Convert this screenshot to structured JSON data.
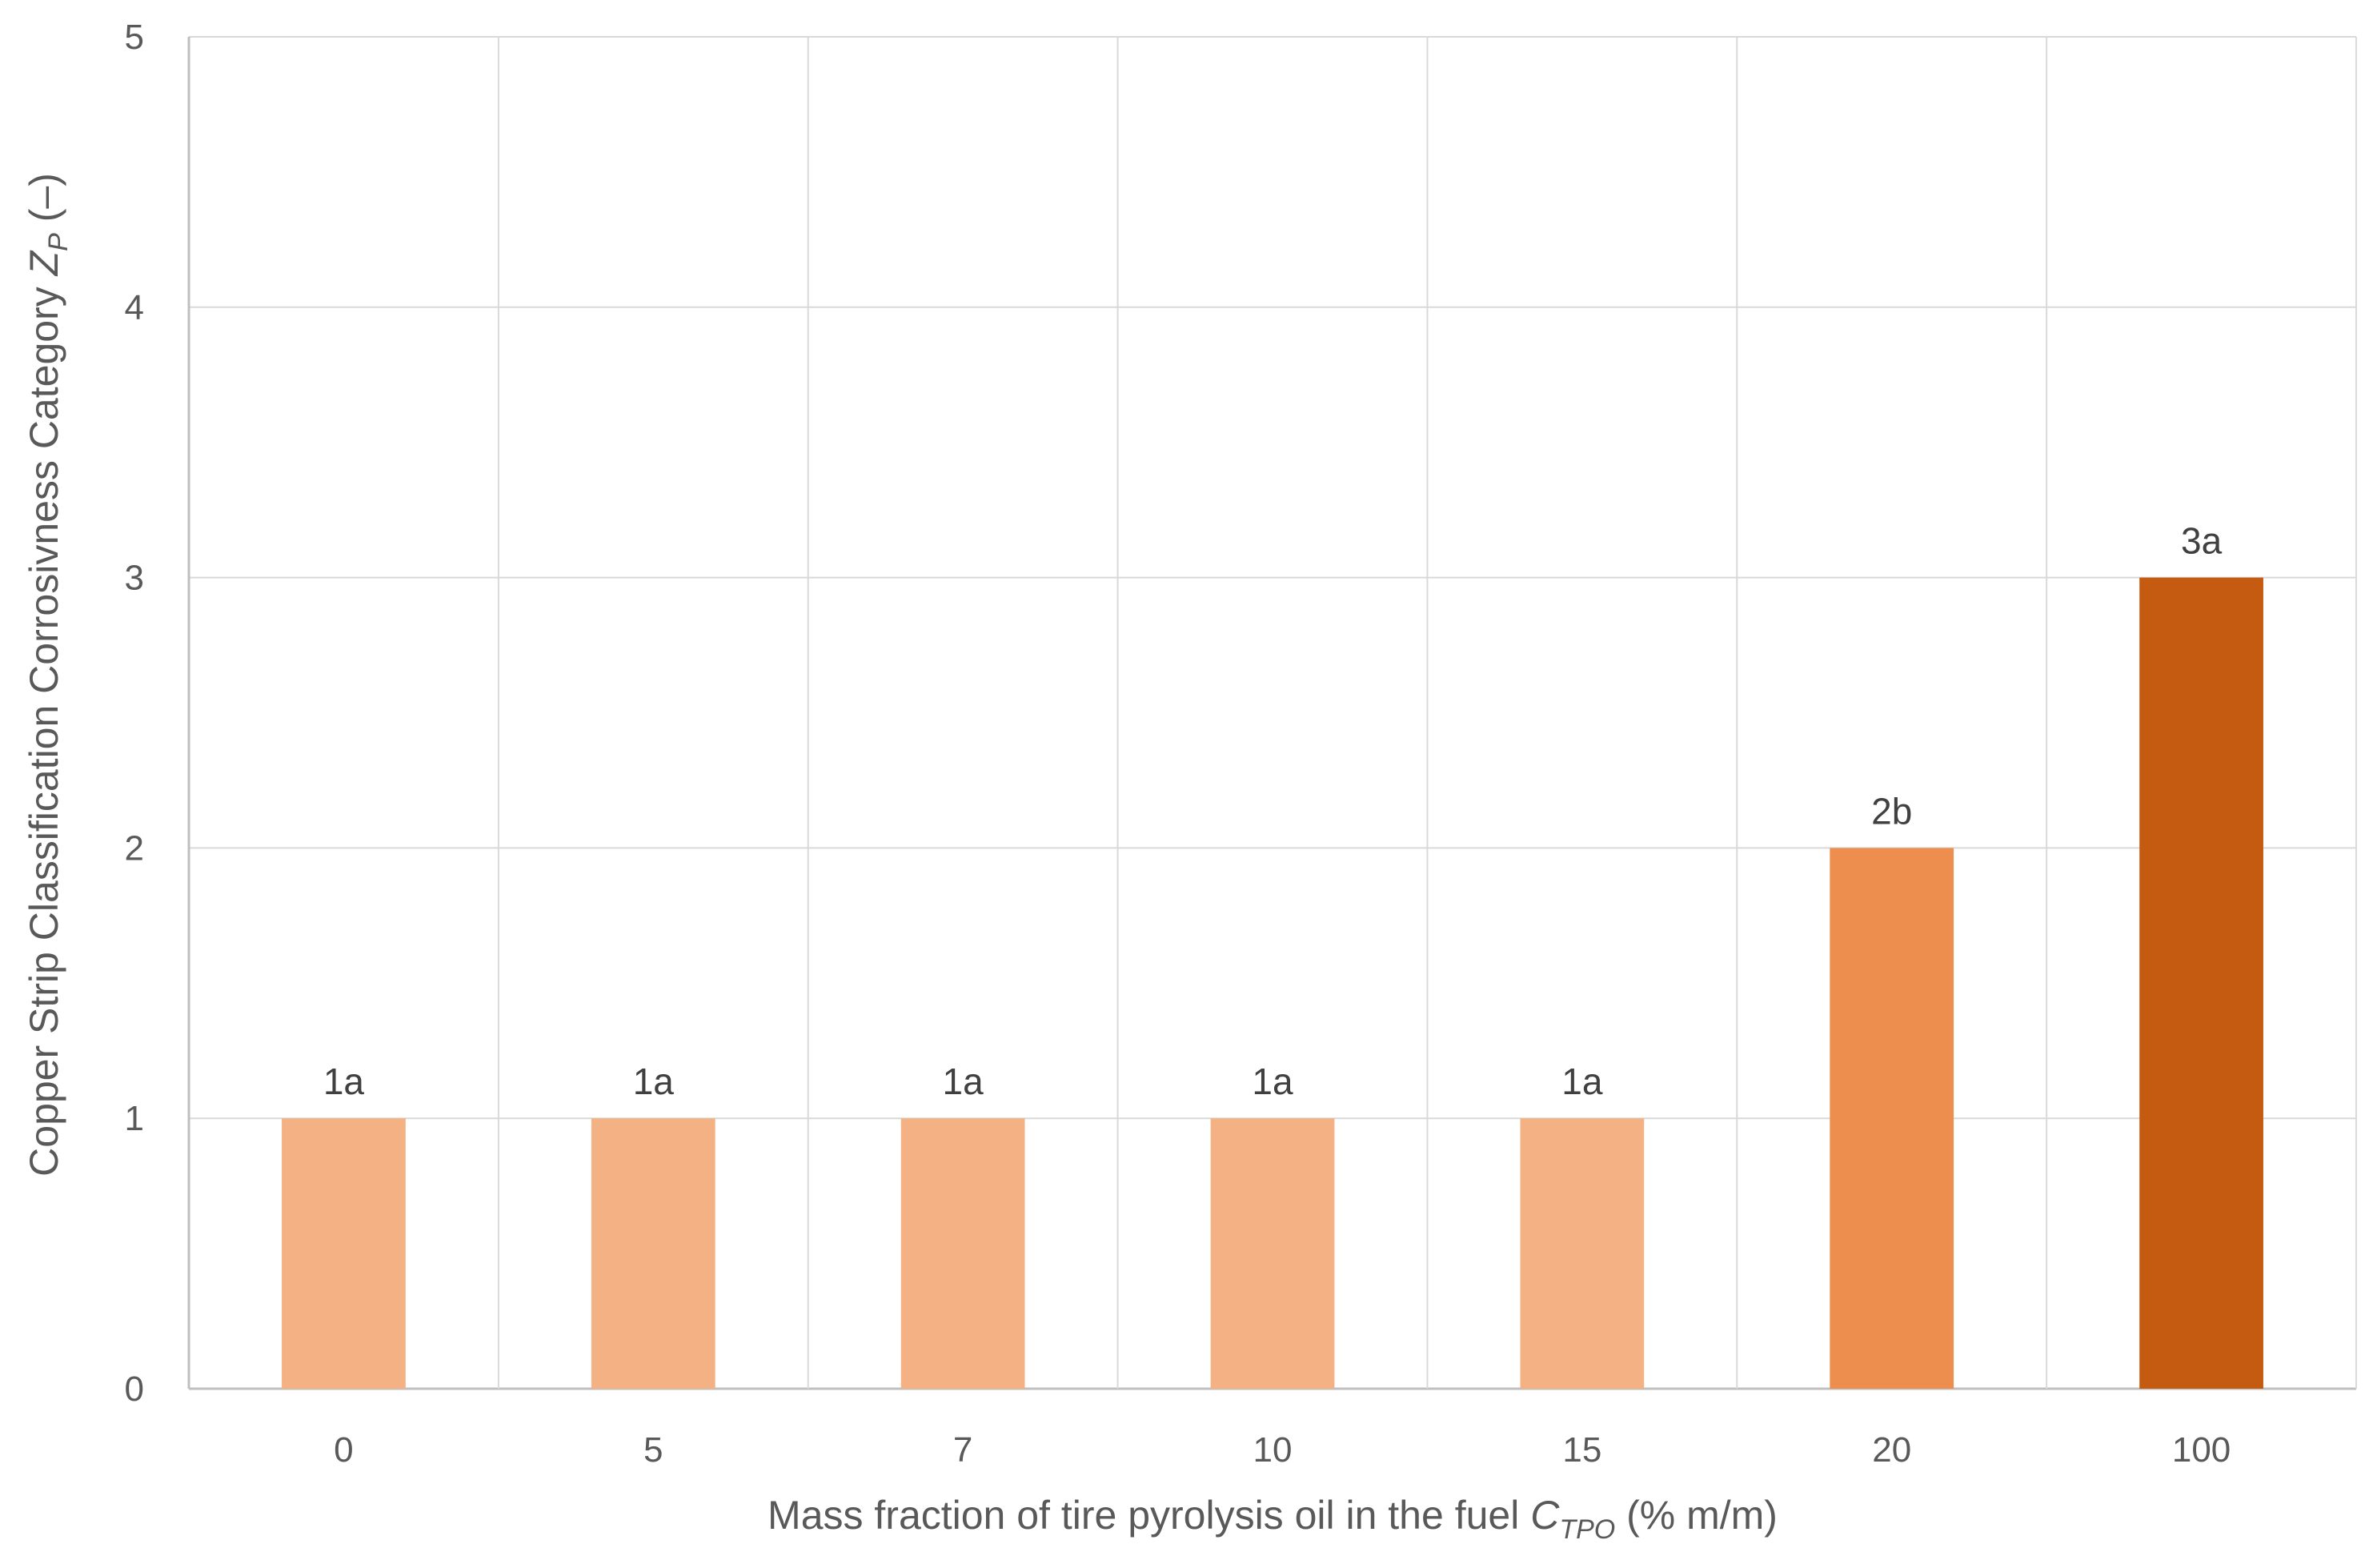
{
  "chart_data": {
    "type": "bar",
    "categories": [
      "0",
      "5",
      "7",
      "10",
      "15",
      "20",
      "100"
    ],
    "values": [
      1,
      1,
      1,
      1,
      1,
      2,
      3
    ],
    "data_labels": [
      "1a",
      "1a",
      "1a",
      "1a",
      "1a",
      "2b",
      "3a"
    ],
    "bar_colors": [
      "#f4b183",
      "#f4b183",
      "#f4b183",
      "#f4b183",
      "#f4b183",
      "#ed8e4e",
      "#c55a11"
    ],
    "ylim": [
      0,
      5
    ],
    "yticks": [
      0,
      1,
      2,
      3,
      4,
      5
    ],
    "grid": true,
    "xlabel": {
      "prefix": "Mass fraction of tire pyrolysis oil in the fuel ",
      "symbol": "C",
      "subscript": "TPO",
      "suffix": " (% m/m)"
    },
    "ylabel": {
      "prefix": "Copper Strip Classification Corrosivness Category ",
      "symbol": "Z",
      "subscript": "P",
      "suffix": " (–)"
    },
    "colors": {
      "grid": "#d9d9d9",
      "axis": "#bfbfbf",
      "tick_text": "#595959",
      "label_text": "#404040"
    }
  }
}
